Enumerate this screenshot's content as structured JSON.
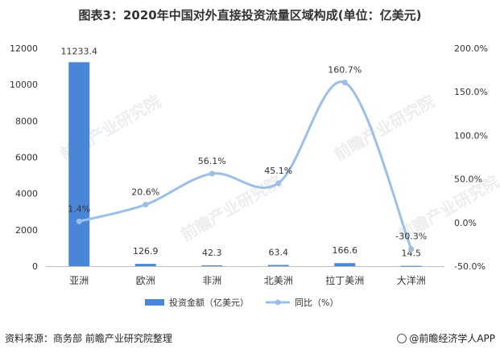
{
  "title": "图表3：2020年中国对外直接投资流量区域构成(单位：亿美元)",
  "source": "资料来源：商务部 前瞻产业研究院整理",
  "brand": "@前瞻经济学人APP",
  "watermark": "前瞻产业研究院",
  "colors": {
    "bar": "#4a86d8",
    "line": "#9dbfe6",
    "axis": "#bfbfbf",
    "text": "#333333"
  },
  "chart_data": {
    "type": "bar",
    "categories": [
      "亚洲",
      "欧洲",
      "非洲",
      "北美洲",
      "拉丁美洲",
      "大洋洲"
    ],
    "series": [
      {
        "name": "投资金额（亿美元）",
        "type": "bar",
        "axis": "left",
        "values": [
          11233.4,
          126.9,
          42.3,
          63.4,
          166.6,
          14.5
        ],
        "labels": [
          "11233.4",
          "126.9",
          "42.3",
          "63.4",
          "166.6",
          "14.5"
        ]
      },
      {
        "name": "同比（%）",
        "type": "line",
        "axis": "right",
        "values": [
          1.4,
          20.6,
          56.1,
          45.1,
          160.7,
          -30.3
        ],
        "labels": [
          "1.4%",
          "20.6%",
          "56.1%",
          "45.1%",
          "160.7%",
          "-30.3%"
        ]
      }
    ],
    "y_left": {
      "min": 0,
      "max": 12000,
      "ticks": [
        "0",
        "2000",
        "4000",
        "6000",
        "8000",
        "10000",
        "12000"
      ]
    },
    "y_right": {
      "min": -50,
      "max": 200,
      "ticks": [
        "-50.0%",
        "0.0%",
        "50.0%",
        "100.0%",
        "150.0%",
        "200.0%"
      ]
    },
    "legend_position": "bottom",
    "grid": false
  }
}
